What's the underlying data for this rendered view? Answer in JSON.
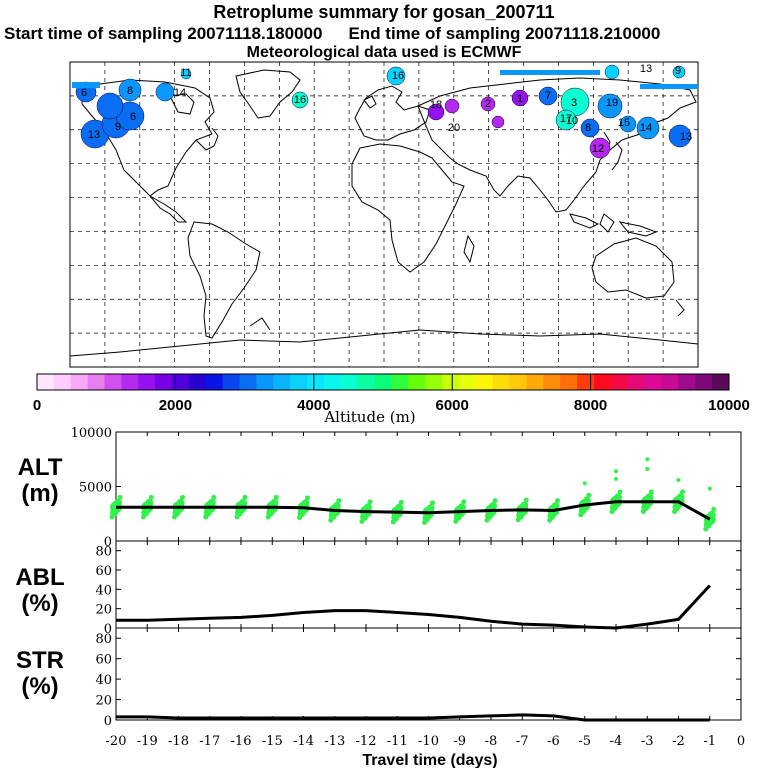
{
  "header": {
    "title": "Retroplume summary for gosan_200711",
    "start_label": "Start time of sampling 20071118.180000",
    "end_label": "End time of sampling 20071118.210000",
    "met_label": "Meteorological data used is ECMWF"
  },
  "colorbar": {
    "label": "Altitude (m)",
    "ticks": [
      "0",
      "2000",
      "4000",
      "6000",
      "8000",
      "10000"
    ],
    "colors": [
      "#ffe6ff",
      "#ffccff",
      "#f5a8f5",
      "#e680f0",
      "#d24ff0",
      "#b428f0",
      "#9610f0",
      "#7800e6",
      "#5000dc",
      "#2800d2",
      "#0a14e6",
      "#0a46f0",
      "#0a6ef5",
      "#0a96fa",
      "#0ab4ff",
      "#0ad2ff",
      "#0ae6ff",
      "#0af5f0",
      "#0affd2",
      "#0affa0",
      "#0aff78",
      "#32ff3c",
      "#64ff0a",
      "#96ff0a",
      "#c8ff0a",
      "#e6ff0a",
      "#fff50a",
      "#ffdc0a",
      "#ffc80a",
      "#ffaa0a",
      "#ff8c0a",
      "#ff6e0a",
      "#ff3c0a",
      "#ff0a1e",
      "#f50a46",
      "#e60a78",
      "#dc0a96",
      "#c80a96",
      "#a00a8c",
      "#7d0a78",
      "#5a0a5a"
    ]
  },
  "map_labels": [
    "16",
    "6",
    "8",
    "13",
    "9",
    "6",
    "14",
    "11",
    "9",
    "1",
    "3",
    "7",
    "8",
    "10",
    "17",
    "12",
    "15",
    "14",
    "13",
    "20",
    "19",
    "2",
    "16",
    "18",
    "13"
  ],
  "chart_data": [
    {
      "panel": "ALT",
      "type": "line",
      "ylabel_line1": "ALT",
      "ylabel_line2": "(m)",
      "ylim": [
        0,
        10000
      ],
      "yticks": [
        "10000",
        "5000",
        "0"
      ],
      "x": [
        -20,
        -19,
        -18,
        -17,
        -16,
        -15,
        -14,
        -13,
        -12,
        -11,
        -10,
        -9,
        -8,
        -7,
        -6,
        -5,
        -4,
        -3,
        -2,
        -1
      ],
      "values": [
        3100,
        3100,
        3100,
        3100,
        3100,
        3100,
        3050,
        2800,
        2700,
        2650,
        2600,
        2700,
        2800,
        2850,
        2800,
        3300,
        3600,
        3600,
        3600,
        2000
      ]
    },
    {
      "panel": "ABL",
      "type": "line",
      "ylabel_line1": "ABL",
      "ylabel_line2": "(%)",
      "ylim": [
        0,
        90
      ],
      "yticks": [
        "80",
        "60",
        "40",
        "20",
        "0"
      ],
      "x": [
        -20,
        -19,
        -18,
        -17,
        -16,
        -15,
        -14,
        -13,
        -12,
        -11,
        -10,
        -9,
        -8,
        -7,
        -6,
        -5,
        -4,
        -3,
        -2,
        -1
      ],
      "values": [
        8,
        8,
        9,
        10,
        11,
        13,
        16,
        18,
        18,
        16,
        14,
        11,
        7,
        4,
        3,
        1,
        0,
        4,
        9,
        44
      ]
    },
    {
      "panel": "STR",
      "type": "line",
      "ylabel_line1": "STR",
      "ylabel_line2": "(%)",
      "ylim": [
        0,
        90
      ],
      "yticks": [
        "80",
        "60",
        "40",
        "20",
        "0"
      ],
      "x": [
        -20,
        -19,
        -18,
        -17,
        -16,
        -15,
        -14,
        -13,
        -12,
        -11,
        -10,
        -9,
        -8,
        -7,
        -6,
        -5,
        -4,
        -3,
        -2,
        -1
      ],
      "values": [
        3,
        3,
        2,
        2,
        2,
        2,
        2,
        2,
        2,
        2,
        2,
        3,
        4,
        5,
        4,
        0,
        0,
        0,
        0,
        0
      ]
    }
  ],
  "xaxis": {
    "ticks": [
      "-20",
      "-19",
      "-18",
      "-17",
      "-16",
      "-15",
      "-14",
      "-13",
      "-12",
      "-11",
      "-10",
      "-9",
      "-8",
      "-7",
      "-6",
      "-5",
      "-4",
      "-3",
      "-2",
      "-1",
      "0"
    ],
    "label": "Travel time (days)"
  }
}
